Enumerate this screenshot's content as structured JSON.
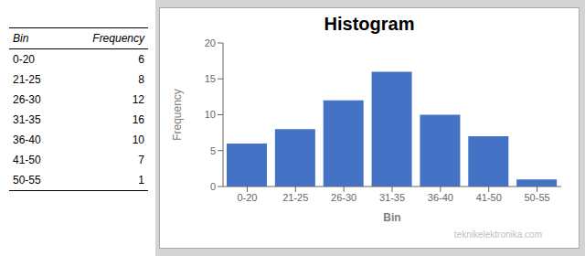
{
  "chart_data": {
    "type": "bar",
    "title": "Histogram",
    "xlabel": "Bin",
    "ylabel": "Frequency",
    "categories": [
      "0-20",
      "21-25",
      "26-30",
      "31-35",
      "36-40",
      "41-50",
      "50-55"
    ],
    "values": [
      6,
      8,
      12,
      16,
      10,
      7,
      1
    ],
    "color": "#4472C4",
    "ylim": [
      0,
      20
    ],
    "yticks": [
      0,
      5,
      10,
      15,
      20
    ],
    "grid": false,
    "annotations": [
      "teknikelektronika.com"
    ]
  }
}
